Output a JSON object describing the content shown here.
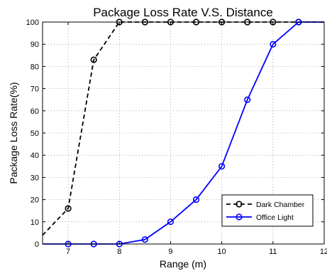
{
  "chart_data": {
    "type": "line",
    "title": "Package Loss Rate V.S. Distance",
    "xlabel": "Range (m)",
    "ylabel": "Package Loss Rate(%)",
    "xlim": [
      6.5,
      12
    ],
    "ylim": [
      0,
      100
    ],
    "xticks": [
      7,
      8,
      9,
      10,
      11,
      12
    ],
    "yticks": [
      0,
      10,
      20,
      30,
      40,
      50,
      60,
      70,
      80,
      90,
      100
    ],
    "grid": true,
    "legend_position": "bottom-right",
    "series": [
      {
        "name": "Dark Chamber",
        "color": "#000000",
        "line_style": "dashed",
        "marker": "circle",
        "x": [
          6.5,
          7,
          7.5,
          8,
          8.5,
          9,
          9.5,
          10,
          10.5,
          11,
          11.5,
          12
        ],
        "y": [
          4,
          16,
          83,
          100,
          100,
          100,
          100,
          100,
          100,
          100,
          100,
          100
        ]
      },
      {
        "name": "Office Light",
        "color": "#0000ff",
        "line_style": "solid",
        "marker": "circle",
        "x": [
          6.5,
          7,
          7.5,
          8,
          8.5,
          9,
          9.5,
          10,
          10.5,
          11,
          11.5,
          12
        ],
        "y": [
          0,
          0,
          0,
          0,
          2,
          10,
          20,
          35,
          65,
          90,
          100,
          100
        ]
      }
    ]
  }
}
